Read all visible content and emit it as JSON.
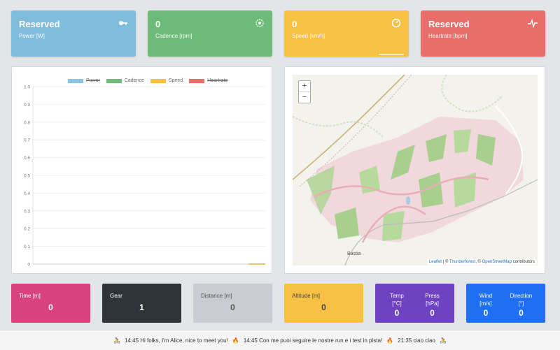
{
  "stats": [
    {
      "value": "Reserved",
      "label": "Power [W]",
      "icon": "key-icon",
      "color": "#7fbddd"
    },
    {
      "value": "0",
      "label": "Cadence [rpm]",
      "icon": "gear-icon",
      "color": "#6dbb78"
    },
    {
      "value": "0",
      "label": "Speed [km/h]",
      "icon": "gauge-icon",
      "color": "#f7c244"
    },
    {
      "value": "Reserved",
      "label": "Heartrate [bpm]",
      "icon": "heartbeat-icon",
      "color": "#e96e6a"
    }
  ],
  "chart_data": {
    "type": "line",
    "series": [
      {
        "name": "Power",
        "color": "#8fc3df",
        "hidden": true,
        "values": []
      },
      {
        "name": "Cadence",
        "color": "#6fbb7a",
        "hidden": false,
        "values": [
          0
        ]
      },
      {
        "name": "Speed",
        "color": "#f7c244",
        "hidden": false,
        "values": [
          0
        ]
      },
      {
        "name": "Heartrate",
        "color": "#e96e6a",
        "hidden": true,
        "values": []
      }
    ],
    "yticks": [
      "1.0",
      "0.9",
      "0.8",
      "0.7",
      "0.6",
      "0.5",
      "0.4",
      "0.3",
      "0.2",
      "0.1",
      "0"
    ],
    "ylim": [
      0,
      1
    ],
    "grid": true,
    "legend": "top"
  },
  "map": {
    "zoom_in": "+",
    "zoom_out": "−",
    "place_label": "Bastia",
    "attribution": {
      "leaflet": "Leaflet",
      "sep": " | © ",
      "thunderforest": "Thunderforest",
      "mid": ", © ",
      "osm": "OpenStreetMap",
      "tail": " contributors"
    }
  },
  "tiles": {
    "time": {
      "label": "Time [m]",
      "value": "0",
      "color": "#d8437f"
    },
    "gear": {
      "label": "Gear",
      "value": "1",
      "color": "#2f3438"
    },
    "distance": {
      "label": "Distance [m]",
      "value": "0",
      "color": "#c9cdd1"
    },
    "altitude": {
      "label": "Altitude [m]",
      "value": "0",
      "color": "#f7c244"
    },
    "temp": {
      "label": "Temp",
      "unit": "[°C]",
      "value": "0"
    },
    "press": {
      "label": "Press",
      "unit": "[hPa]",
      "value": "0"
    },
    "weather_color": "#6f42c1",
    "wind": {
      "label": "Wind",
      "unit": "[m/s]",
      "value": "0"
    },
    "direction": {
      "label": "Direction",
      "unit": "[°]",
      "value": "0"
    },
    "wind_color": "#1f6ff2"
  },
  "messages": [
    {
      "icon": "cyclist-icon",
      "text": "14:45 Hi folks, I'm Alice, nice to meet you!"
    },
    {
      "icon": "fire-icon",
      "text": "14:45 Con me puoi seguire le nostre run e i test in pista!"
    },
    {
      "icon": "fire-icon",
      "text": "21:35 ciao ciao"
    },
    {
      "icon": "cyclist-icon",
      "text": ""
    }
  ]
}
